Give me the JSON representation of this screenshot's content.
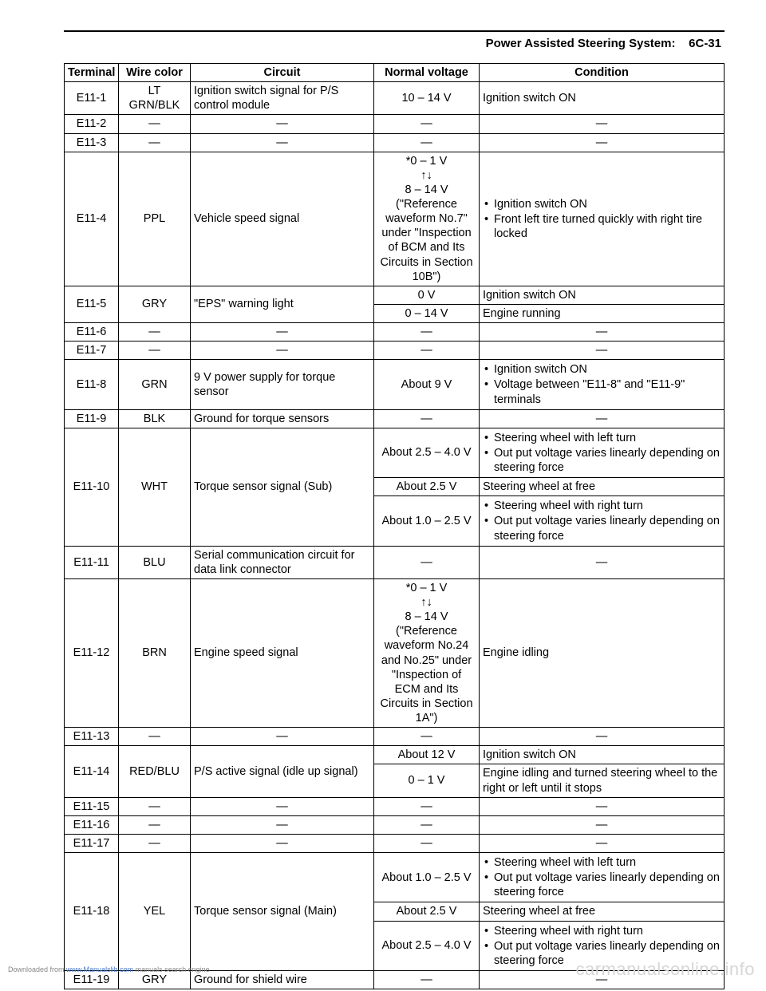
{
  "header": {
    "title": "Power Assisted Steering System:",
    "page": "6C-31"
  },
  "tableHeaders": {
    "c1": "Terminal",
    "c2": "Wire color",
    "c3": "Circuit",
    "c4": "Normal voltage",
    "c5": "Condition"
  },
  "r1": {
    "t": "E11-1",
    "wc": "LT GRN/BLK",
    "circ": "Ignition switch signal for P/S control module",
    "nv": "10 – 14 V",
    "cond": "Ignition switch ON"
  },
  "r2": {
    "t": "E11-2",
    "wc": "—",
    "circ": "—",
    "nv": "—",
    "cond": "—"
  },
  "r3": {
    "t": "E11-3",
    "wc": "—",
    "circ": "—",
    "nv": "—",
    "cond": "—"
  },
  "r4": {
    "t": "E11-4",
    "wc": "PPL",
    "circ": "Vehicle speed signal",
    "nvLine1": "*0 – 1 V",
    "nvLine2": "↑↓",
    "nvLine3": "8 – 14 V",
    "nvLine4": "(\"Reference waveform No.7\" under \"Inspection of BCM and Its Circuits in Section 10B\")",
    "b1": "Ignition switch ON",
    "b2": "Front left tire turned quickly with right tire locked"
  },
  "r5": {
    "t": "E11-5",
    "wc": "GRY",
    "circ": "\"EPS\" warning light",
    "nv1": "0 V",
    "cond1": "Ignition switch ON",
    "nv2": "0 – 14 V",
    "cond2": "Engine running"
  },
  "r6": {
    "t": "E11-6",
    "wc": "—",
    "circ": "—",
    "nv": "—",
    "cond": "—"
  },
  "r7": {
    "t": "E11-7",
    "wc": "—",
    "circ": "—",
    "nv": "—",
    "cond": "—"
  },
  "r8": {
    "t": "E11-8",
    "wc": "GRN",
    "circ": "9 V power supply for torque sensor",
    "nv": "About 9 V",
    "b1": "Ignition switch ON",
    "b2": "Voltage between \"E11-8\" and \"E11-9\" terminals"
  },
  "r9": {
    "t": "E11-9",
    "wc": "BLK",
    "circ": "Ground for torque sensors",
    "nv": "—",
    "cond": "—"
  },
  "r10": {
    "t": "E11-10",
    "wc": "WHT",
    "circ": "Torque sensor signal (Sub)",
    "nvA": "About 2.5 – 4.0 V",
    "bA1": "Steering wheel with left turn",
    "bA2": "Out put voltage varies linearly depending on steering force",
    "nvB": "About 2.5 V",
    "condB": "Steering wheel at free",
    "nvC": "About 1.0 – 2.5 V",
    "bC1": "Steering wheel with right turn",
    "bC2": "Out put voltage varies linearly depending on steering force"
  },
  "r11": {
    "t": "E11-11",
    "wc": "BLU",
    "circ": "Serial communication circuit for data link connector",
    "nv": "—",
    "cond": "—"
  },
  "r12": {
    "t": "E11-12",
    "wc": "BRN",
    "circ": "Engine speed signal",
    "nvLine1": "*0 – 1 V",
    "nvLine2": "↑↓",
    "nvLine3": "8 – 14 V",
    "nvLine4": "(\"Reference waveform No.24 and No.25\" under \"Inspection of ECM and Its Circuits in Section 1A\")",
    "cond": "Engine idling"
  },
  "r13": {
    "t": "E11-13",
    "wc": "—",
    "circ": "—",
    "nv": "—",
    "cond": "—"
  },
  "r14": {
    "t": "E11-14",
    "wc": "RED/BLU",
    "circ": "P/S active signal (idle up signal)",
    "nv1": "About 12 V",
    "cond1": "Ignition switch ON",
    "nv2": "0 – 1 V",
    "cond2": "Engine idling and turned steering wheel to the right or left until it stops"
  },
  "r15": {
    "t": "E11-15",
    "wc": "—",
    "circ": "—",
    "nv": "—",
    "cond": "—"
  },
  "r16": {
    "t": "E11-16",
    "wc": "—",
    "circ": "—",
    "nv": "—",
    "cond": "—"
  },
  "r17": {
    "t": "E11-17",
    "wc": "—",
    "circ": "—",
    "nv": "—",
    "cond": "—"
  },
  "r18": {
    "t": "E11-18",
    "wc": "YEL",
    "circ": "Torque sensor signal (Main)",
    "nvA": "About 1.0 – 2.5 V",
    "bA1": "Steering wheel with left turn",
    "bA2": "Out put voltage varies linearly depending on steering force",
    "nvB": "About 2.5 V",
    "condB": "Steering wheel at free",
    "nvC": "About 2.5 – 4.0 V",
    "bC1": "Steering wheel with right turn",
    "bC2": "Out put voltage varies linearly depending on steering force"
  },
  "r19": {
    "t": "E11-19",
    "wc": "GRY",
    "circ": "Ground for shield wire",
    "nv": "—",
    "cond": "—"
  },
  "footer": {
    "dl": "Downloaded from ",
    "link": "www.Manualslib.com",
    "trail": " manuals search engine",
    "brand": "carmanualsonline.info"
  }
}
